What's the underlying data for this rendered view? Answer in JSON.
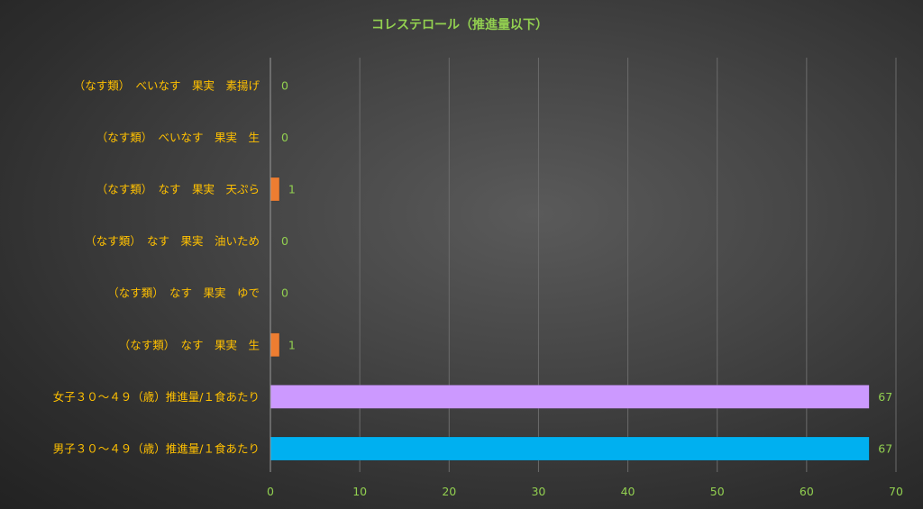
{
  "chart_data": {
    "type": "bar",
    "orientation": "horizontal",
    "title": "コレステロール（推進量以下）",
    "categories": [
      "（なす類）　べいなす　果実　素揚げ",
      "（なす類）　べいなす　果実　生",
      "（なす類）　なす　果実　天ぷら",
      "（なす類）　なす　果実　油いため",
      "（なす類）　なす　果実　ゆで",
      "（なす類）　なす　果実　生",
      "女子３０～４９（歳）推進量/１食あたり",
      "男子３０～４９（歳）推進量/１食あたり"
    ],
    "values": [
      0,
      0,
      1,
      0,
      0,
      1,
      67,
      67
    ],
    "value_labels": [
      "0",
      "0",
      "1",
      "0",
      "0",
      "1",
      "67",
      "67"
    ],
    "bar_colors": [
      "#ED7D31",
      "#ED7D31",
      "#ED7D31",
      "#ED7D31",
      "#ED7D31",
      "#ED7D31",
      "#CC99FF",
      "#00B0F0"
    ],
    "x_ticks": [
      "0",
      "10",
      "20",
      "30",
      "40",
      "50",
      "60",
      "70"
    ],
    "xlim": [
      0,
      70
    ],
    "grid": true,
    "legend": "none",
    "colors": {
      "title": "#92D050",
      "category_text": "#FFC000",
      "tick_text": "#92D050",
      "data_label_text": "#92D050",
      "grid": "#6b6b6b",
      "axis": "#9a9a9a"
    }
  }
}
